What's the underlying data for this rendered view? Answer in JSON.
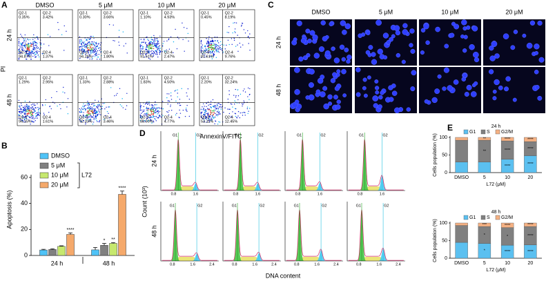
{
  "panel_labels": [
    "A",
    "B",
    "C",
    "D",
    "E"
  ],
  "flow": {
    "columns": [
      "DMSO",
      "5 μM",
      "10 μM",
      "20 μM"
    ],
    "rows": [
      "24 h",
      "48 h"
    ],
    "y_label": "PI",
    "x_label": "AnnexinV/FITC",
    "quadrant_names": [
      "Q2-1",
      "Q2-2",
      "Q2-3",
      "Q2-4"
    ],
    "plots": [
      [
        [
          "0.35%",
          "3.42%",
          "94.87%",
          "1.37%"
        ],
        [
          "0.30%",
          "3.66%",
          "94.26%",
          "1.80%"
        ],
        [
          "1.10%",
          "4.93%",
          "91.51%",
          "2.47%"
        ],
        [
          "0.45%",
          "8.19%",
          "81.61%",
          "9.76%"
        ]
      ],
      [
        [
          "1.29%",
          "2.95%",
          "94.15%",
          "1.61%"
        ],
        [
          "1.33%",
          "2.88%",
          "92.33%",
          "3.46%"
        ],
        [
          "1.83%",
          "4.50%",
          "88.90%",
          "4.77%"
        ],
        [
          "2.20%",
          "32.24%",
          "53.11%",
          "12.45%"
        ]
      ]
    ]
  },
  "microscopy": {
    "columns": [
      "DMSO",
      "5 μM",
      "10 μM",
      "20 μM"
    ],
    "rows": [
      "24 h",
      "48 h"
    ]
  },
  "cell_cycle": {
    "rows": [
      "24 h",
      "48 h"
    ],
    "y_label": "Count (10³)",
    "x_label": "DNA content",
    "peaks": [
      "G1",
      "G2"
    ],
    "x_ticks": [
      [
        "0.8",
        "1.6"
      ],
      [
        "0.8",
        "1.6",
        "2.4"
      ]
    ]
  },
  "chart_data": [
    {
      "type": "bar",
      "y_label": "Apoptosis (%)",
      "legend_title": "L72",
      "categories": [
        "24 h",
        "48 h"
      ],
      "ylim": [
        0,
        60
      ],
      "yticks": [
        0,
        20,
        40,
        60
      ],
      "series": [
        {
          "name": "DMSO",
          "color": "#4fc3f7",
          "values": [
            4.2,
            4.3
          ],
          "errors": [
            0.5,
            1.8
          ],
          "sig": [
            null,
            null
          ]
        },
        {
          "name": "5 μM",
          "color": "#808080",
          "values": [
            4.6,
            7.8
          ],
          "errors": [
            0.5,
            1.5
          ],
          "sig": [
            null,
            "*"
          ]
        },
        {
          "name": "10 μM",
          "color": "#c6e86e",
          "values": [
            7,
            9.3
          ],
          "errors": [
            0.4,
            0.6
          ],
          "sig": [
            null,
            "**"
          ]
        },
        {
          "name": "20 μM",
          "color": "#f5a96b",
          "values": [
            16.2,
            47
          ],
          "errors": [
            1.2,
            2.5
          ],
          "sig": [
            "****",
            "****"
          ]
        }
      ]
    },
    {
      "type": "stacked_bar",
      "title": "24 h",
      "y_label": "Cells population (%)",
      "x_label": "L72 (μM)",
      "categories": [
        "DMSO",
        "5",
        "10",
        "20"
      ],
      "ylim": [
        0,
        100
      ],
      "yticks": [
        0,
        50,
        100
      ],
      "series": [
        {
          "name": "G1",
          "color": "#5bc0f0",
          "values": [
            30,
            30,
            38,
            48
          ],
          "sig": [
            null,
            null,
            "****",
            "****"
          ]
        },
        {
          "name": "S",
          "color": "#808080",
          "values": [
            62,
            62,
            52,
            40
          ],
          "sig": [
            null,
            "**",
            "****",
            "****"
          ]
        },
        {
          "name": "G2/M",
          "color": "#f5b183",
          "values": [
            8,
            8,
            10,
            12
          ],
          "sig": [
            null,
            "**",
            "****",
            "****"
          ]
        }
      ]
    },
    {
      "type": "stacked_bar",
      "title": "48 h",
      "y_label": "Cells population (%)",
      "x_label": "L72 (μM)",
      "categories": [
        "DMSO",
        "5",
        "10",
        "20"
      ],
      "ylim": [
        0,
        100
      ],
      "yticks": [
        0,
        50,
        100
      ],
      "series": [
        {
          "name": "G1",
          "color": "#5bc0f0",
          "values": [
            45,
            42,
            37,
            38
          ],
          "sig": [
            null,
            "*",
            "****",
            "****"
          ]
        },
        {
          "name": "S",
          "color": "#808080",
          "values": [
            48,
            48,
            50,
            52
          ],
          "sig": [
            null,
            "*",
            "*",
            "****"
          ]
        },
        {
          "name": "G2/M",
          "color": "#f5b183",
          "values": [
            7,
            10,
            13,
            10
          ],
          "sig": [
            null,
            "***",
            "****",
            "****"
          ]
        }
      ]
    }
  ]
}
